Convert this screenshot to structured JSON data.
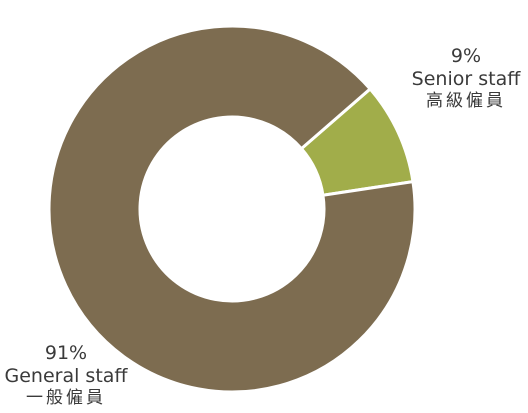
{
  "chart_data": {
    "type": "pie",
    "donut": true,
    "categories": [
      "Senior staff",
      "General staff"
    ],
    "categories_zh": [
      "高級僱員",
      "一般僱員"
    ],
    "values": [
      9,
      91
    ],
    "value_labels": [
      "9%",
      "91%"
    ],
    "colors": [
      "#a1ad4a",
      "#7d6c50"
    ],
    "slice_separator_color": "#ffffff",
    "title": "",
    "legend": "none"
  }
}
